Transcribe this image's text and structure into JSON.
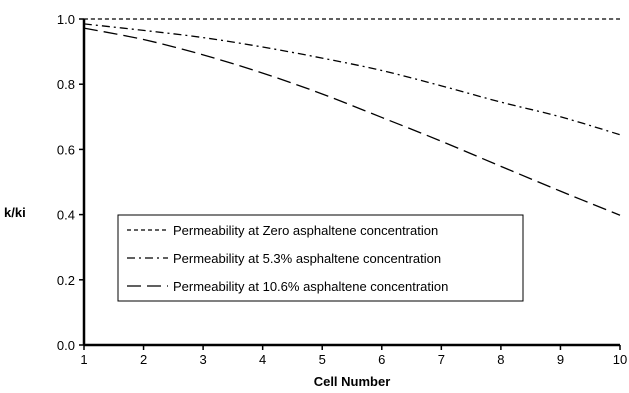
{
  "chart_data": {
    "type": "line",
    "title": "",
    "xlabel": "Cell Number",
    "ylabel": "k/ki",
    "xlim": [
      1,
      10
    ],
    "ylim": [
      0.0,
      1.0
    ],
    "x_ticks": [
      1,
      2,
      3,
      4,
      5,
      6,
      7,
      8,
      9,
      10
    ],
    "y_ticks": [
      "0.0",
      "0.2",
      "0.4",
      "0.6",
      "0.8",
      "1.0"
    ],
    "grid": false,
    "legend_position": "center-left",
    "x": [
      1,
      2,
      3,
      4,
      5,
      6,
      7,
      8,
      9,
      10
    ],
    "series": [
      {
        "name": "Permeability at Zero asphaltene concentration",
        "dash": "dashed-short",
        "values": [
          1.0,
          1.0,
          1.0,
          1.0,
          1.0,
          1.0,
          1.0,
          1.0,
          1.0,
          1.0
        ]
      },
      {
        "name": "Permeability at 5.3% asphaltene concentration",
        "dash": "dash-dot",
        "values": [
          0.985,
          0.965,
          0.943,
          0.914,
          0.88,
          0.842,
          0.795,
          0.745,
          0.7,
          0.645
        ]
      },
      {
        "name": "Permeability at 10.6% asphaltene concentration",
        "dash": "dashed-long",
        "values": [
          0.972,
          0.937,
          0.89,
          0.834,
          0.77,
          0.698,
          0.625,
          0.548,
          0.472,
          0.398
        ]
      }
    ]
  }
}
